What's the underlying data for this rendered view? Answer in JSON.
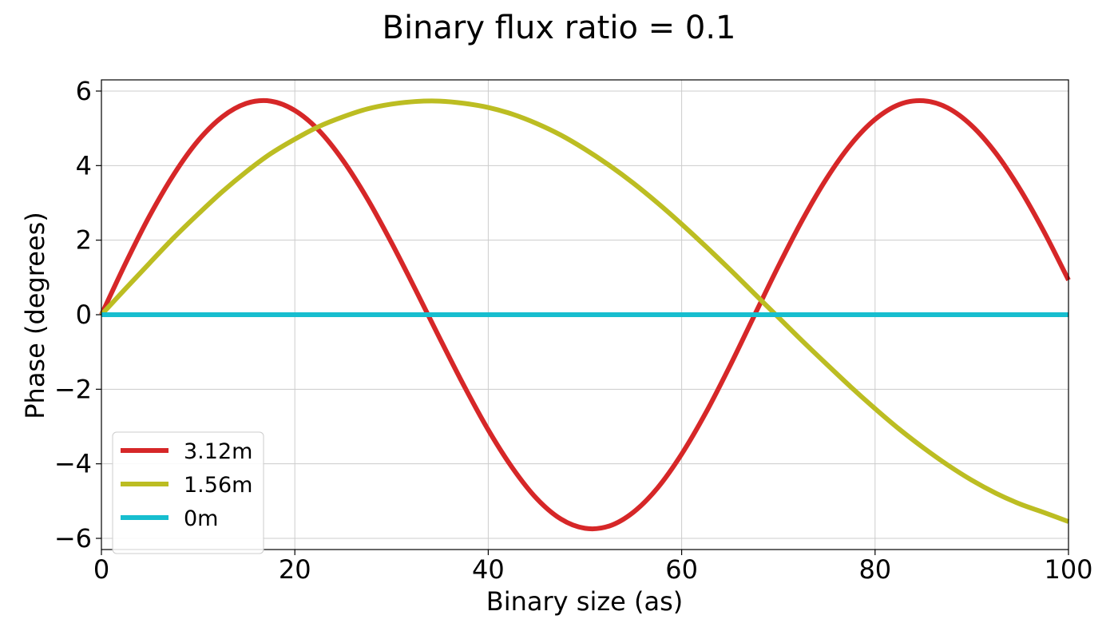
{
  "chart_data": {
    "type": "line",
    "title": "Binary flux ratio = 0.1",
    "xlabel": "Binary size (as)",
    "ylabel": "Phase (degrees)",
    "xlim": [
      0,
      100
    ],
    "ylim": [
      -6.3,
      6.3
    ],
    "xticks": [
      0,
      20,
      40,
      60,
      80,
      100
    ],
    "yticks": [
      -6,
      -4,
      -2,
      0,
      2,
      4,
      6
    ],
    "xtick_labels": [
      "0",
      "20",
      "40",
      "60",
      "80",
      "100"
    ],
    "ytick_labels": [
      "−6",
      "−4",
      "−2",
      "0",
      "2",
      "4",
      "6"
    ],
    "grid": true,
    "legend_position": "lower-left",
    "series": [
      {
        "name": "3.12m",
        "color": "#d62728",
        "x": [
          0,
          2.5,
          5,
          7.5,
          10,
          12.5,
          15,
          17.5,
          20,
          22.5,
          25,
          27.5,
          30,
          32.5,
          35,
          37.5,
          40,
          42.5,
          45,
          47.5,
          50,
          52.5,
          55,
          57.5,
          60,
          62.5,
          65,
          67.5,
          70,
          72.5,
          75,
          77.5,
          80,
          82.5,
          85,
          87.5,
          90,
          92.5,
          95,
          97.5,
          100
        ],
        "y": [
          0,
          1.38,
          2.66,
          3.77,
          4.67,
          5.31,
          5.67,
          5.73,
          5.48,
          4.94,
          4.13,
          3.11,
          1.93,
          0.66,
          -0.64,
          -1.91,
          -3.09,
          -4.11,
          -4.93,
          -5.48,
          -5.73,
          -5.67,
          -5.3,
          -4.65,
          -3.74,
          -2.63,
          -1.37,
          -0.03,
          1.3,
          2.55,
          3.66,
          4.57,
          5.24,
          5.64,
          5.74,
          5.55,
          5.07,
          4.33,
          3.36,
          2.21,
          0.93
        ]
      },
      {
        "name": "1.56m",
        "color": "#bcbd22",
        "x": [
          0,
          2.5,
          5,
          7.5,
          10,
          12.5,
          15,
          17.5,
          20,
          22.5,
          25,
          27.5,
          30,
          32.5,
          35,
          37.5,
          40,
          42.5,
          45,
          47.5,
          50,
          52.5,
          55,
          57.5,
          60,
          62.5,
          65,
          67.5,
          70,
          72.5,
          75,
          77.5,
          80,
          82.5,
          85,
          87.5,
          90,
          92.5,
          95,
          97.5,
          100
        ],
        "y": [
          0,
          0.7,
          1.39,
          2.07,
          2.7,
          3.3,
          3.84,
          4.32,
          4.71,
          5.05,
          5.31,
          5.52,
          5.65,
          5.72,
          5.73,
          5.67,
          5.56,
          5.38,
          5.13,
          4.82,
          4.44,
          4.01,
          3.53,
          3.0,
          2.43,
          1.83,
          1.21,
          0.57,
          -0.07,
          -0.71,
          -1.33,
          -1.94,
          -2.52,
          -3.07,
          -3.57,
          -4.03,
          -4.44,
          -4.79,
          -5.08,
          -5.31,
          -5.55
        ]
      },
      {
        "name": "0m",
        "color": "#17becf",
        "x": [
          0,
          100
        ],
        "y": [
          0,
          0
        ]
      }
    ]
  }
}
